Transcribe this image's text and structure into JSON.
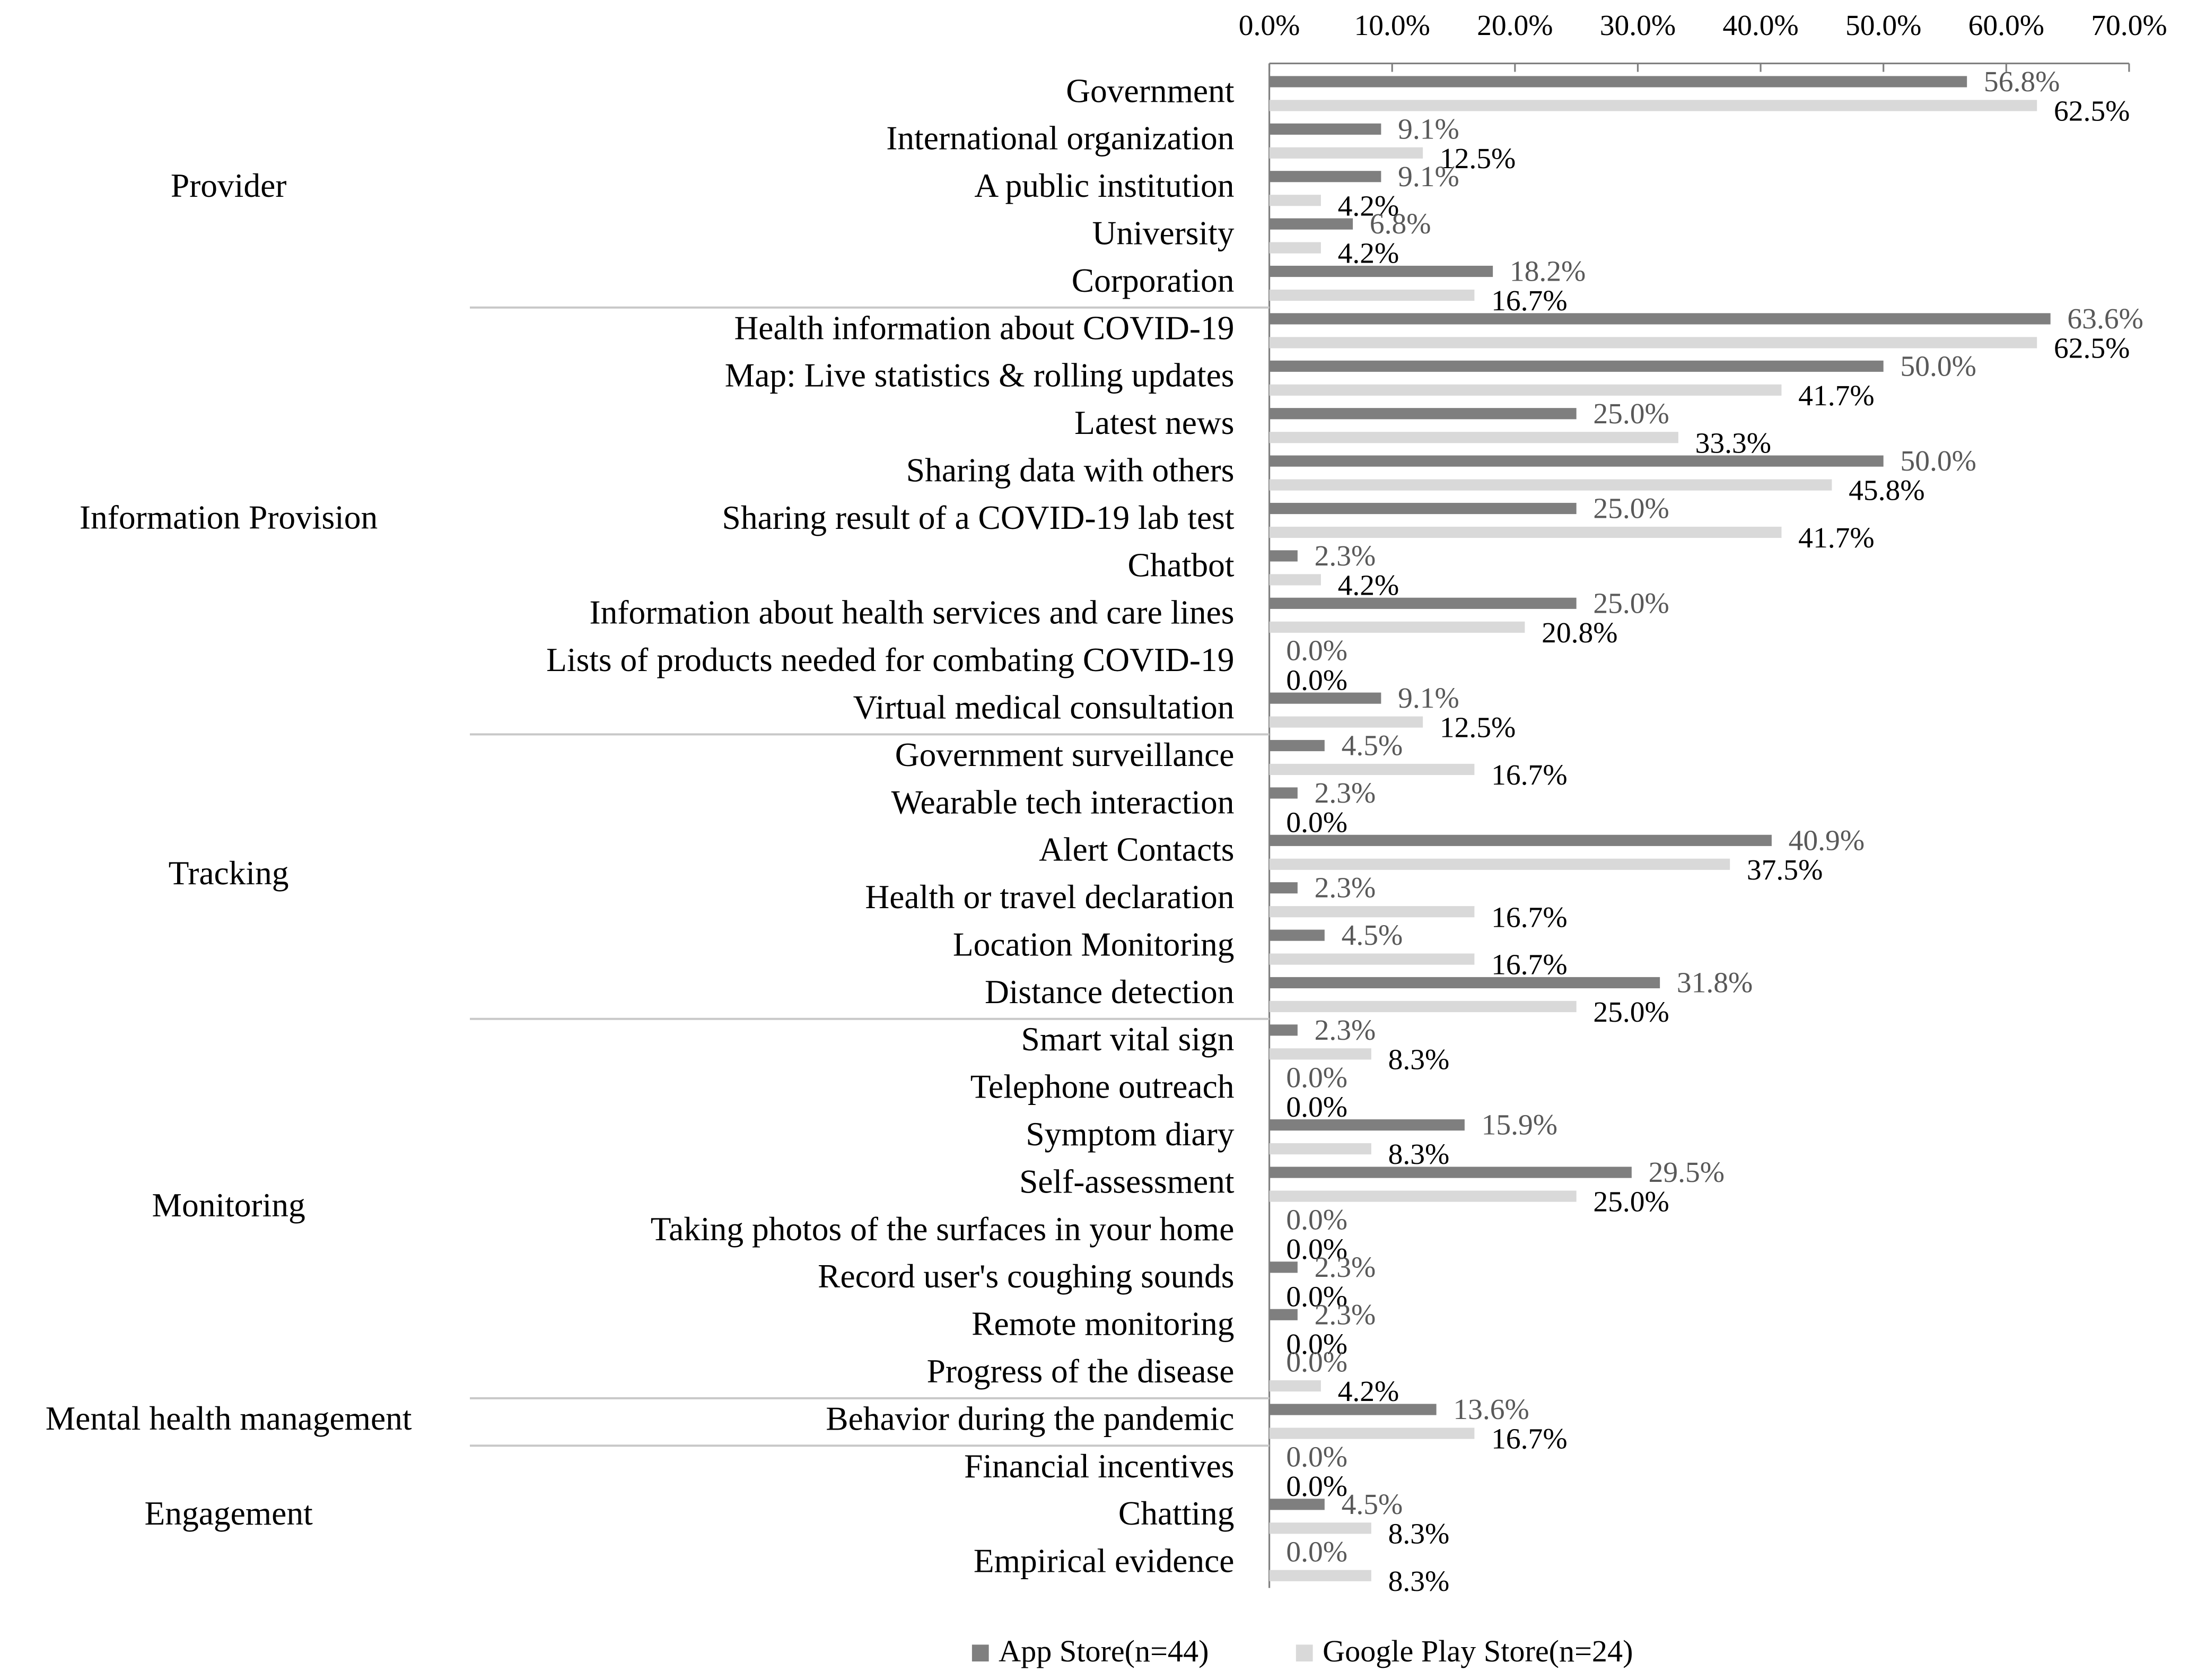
{
  "chart_data": {
    "type": "bar",
    "orientation": "horizontal",
    "groups": [
      {
        "name": "Provider",
        "categories": [
          "Government",
          "International organization",
          "A public institution",
          "University",
          "Corporation"
        ]
      },
      {
        "name": "Information Provision",
        "categories": [
          "Health information about COVID-19",
          "Map: Live statistics & rolling updates",
          "Latest news",
          "Sharing data with others",
          "Sharing result of a COVID-19 lab test",
          "Chatbot",
          "Information about health services and care lines",
          "Lists of products needed for combating COVID-19",
          "Virtual medical consultation"
        ]
      },
      {
        "name": "Tracking",
        "categories": [
          "Government surveillance",
          "Wearable tech interaction",
          "Alert Contacts",
          "Health or travel declaration",
          "Location Monitoring",
          "Distance detection"
        ]
      },
      {
        "name": "Monitoring",
        "categories": [
          "Smart vital sign",
          "Telephone outreach",
          "Symptom diary",
          "Self-assessment",
          "Taking photos of the surfaces in your home",
          "Record user's coughing sounds",
          "Remote monitoring",
          "Progress of the disease"
        ]
      },
      {
        "name": "Mental health management",
        "categories": [
          "Behavior during the pandemic"
        ]
      },
      {
        "name": "Engagement",
        "categories": [
          "Financial incentives",
          "Chatting",
          "Empirical evidence"
        ]
      }
    ],
    "series": [
      {
        "name": "App Store(n=44)",
        "color": "#7f7f7f",
        "label_color": "#595959",
        "values": [
          56.8,
          9.1,
          9.1,
          6.8,
          18.2,
          63.6,
          50.0,
          25.0,
          50.0,
          25.0,
          2.3,
          25.0,
          0.0,
          9.1,
          4.5,
          2.3,
          40.9,
          2.3,
          4.5,
          31.8,
          2.3,
          0.0,
          15.9,
          29.5,
          0.0,
          2.3,
          2.3,
          0.0,
          13.6,
          0.0,
          4.5,
          0.0
        ],
        "value_labels": [
          "56.8%",
          "9.1%",
          "9.1%",
          "6.8%",
          "18.2%",
          "63.6%",
          "50.0%",
          "25.0%",
          "50.0%",
          "25.0%",
          "2.3%",
          "25.0%",
          "0.0%",
          "9.1%",
          "4.5%",
          "2.3%",
          "40.9%",
          "2.3%",
          "4.5%",
          "31.8%",
          "2.3%",
          "0.0%",
          "15.9%",
          "29.5%",
          "0.0%",
          "2.3%",
          "2.3%",
          "0.0%",
          "13.6%",
          "0.0%",
          "4.5%",
          "0.0%"
        ]
      },
      {
        "name": "Google Play Store(n=24)",
        "color": "#d9d9d9",
        "label_color": "#000000",
        "values": [
          62.5,
          12.5,
          4.2,
          4.2,
          16.7,
          62.5,
          41.7,
          33.3,
          45.8,
          41.7,
          4.2,
          20.8,
          0.0,
          12.5,
          16.7,
          0.0,
          37.5,
          16.7,
          16.7,
          25.0,
          8.3,
          0.0,
          8.3,
          25.0,
          0.0,
          0.0,
          0.0,
          4.2,
          16.7,
          0.0,
          8.3,
          8.3
        ],
        "value_labels": [
          "62.5%",
          "12.5%",
          "4.2%",
          "4.2%",
          "16.7%",
          "62.5%",
          "41.7%",
          "33.3%",
          "45.8%",
          "41.7%",
          "4.2%",
          "20.8%",
          "0.0%",
          "12.5%",
          "16.7%",
          "0.0%",
          "37.5%",
          "16.7%",
          "16.7%",
          "25.0%",
          "8.3%",
          "0.0%",
          "8.3%",
          "25.0%",
          "0.0%",
          "0.0%",
          "0.0%",
          "4.2%",
          "16.7%",
          "0.0%",
          "8.3%",
          "8.3%"
        ]
      }
    ],
    "xlim": [
      0,
      70
    ],
    "xticks": [
      {
        "value": 0,
        "label": "0.0%"
      },
      {
        "value": 10,
        "label": "10.0%"
      },
      {
        "value": 20,
        "label": "20.0%"
      },
      {
        "value": 30,
        "label": "30.0%"
      },
      {
        "value": 40,
        "label": "40.0%"
      },
      {
        "value": 50,
        "label": "50.0%"
      },
      {
        "value": 60,
        "label": "60.0%"
      },
      {
        "value": 70,
        "label": "70.0%"
      }
    ],
    "legend": "bottom"
  }
}
